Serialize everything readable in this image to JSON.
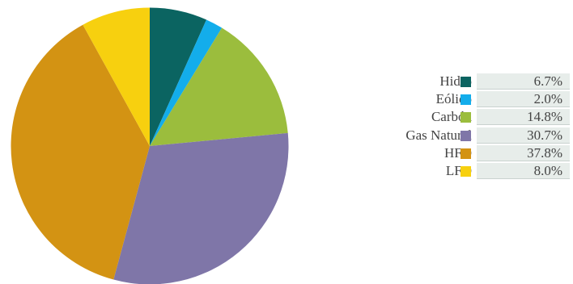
{
  "chart_data": {
    "type": "pie",
    "title": "",
    "start_angle_deg": 0,
    "direction": "clockwise",
    "legend_position": "right",
    "slices": [
      {
        "label": "Hidro",
        "value": 6.7,
        "display": "6.7%",
        "color": "#0b6461"
      },
      {
        "label": "Eólico",
        "value": 2.0,
        "display": "2.0%",
        "color": "#13adeb"
      },
      {
        "label": "Carbón",
        "value": 14.8,
        "display": "14.8%",
        "color": "#9bbd3d"
      },
      {
        "label": "Gas Natural",
        "value": 30.7,
        "display": "30.7%",
        "color": "#7f76a8"
      },
      {
        "label": "HFO",
        "value": 37.8,
        "display": "37.8%",
        "color": "#d39313"
      },
      {
        "label": "LFO",
        "value": 8.0,
        "display": "8.0%",
        "color": "#f7d00f"
      }
    ]
  }
}
